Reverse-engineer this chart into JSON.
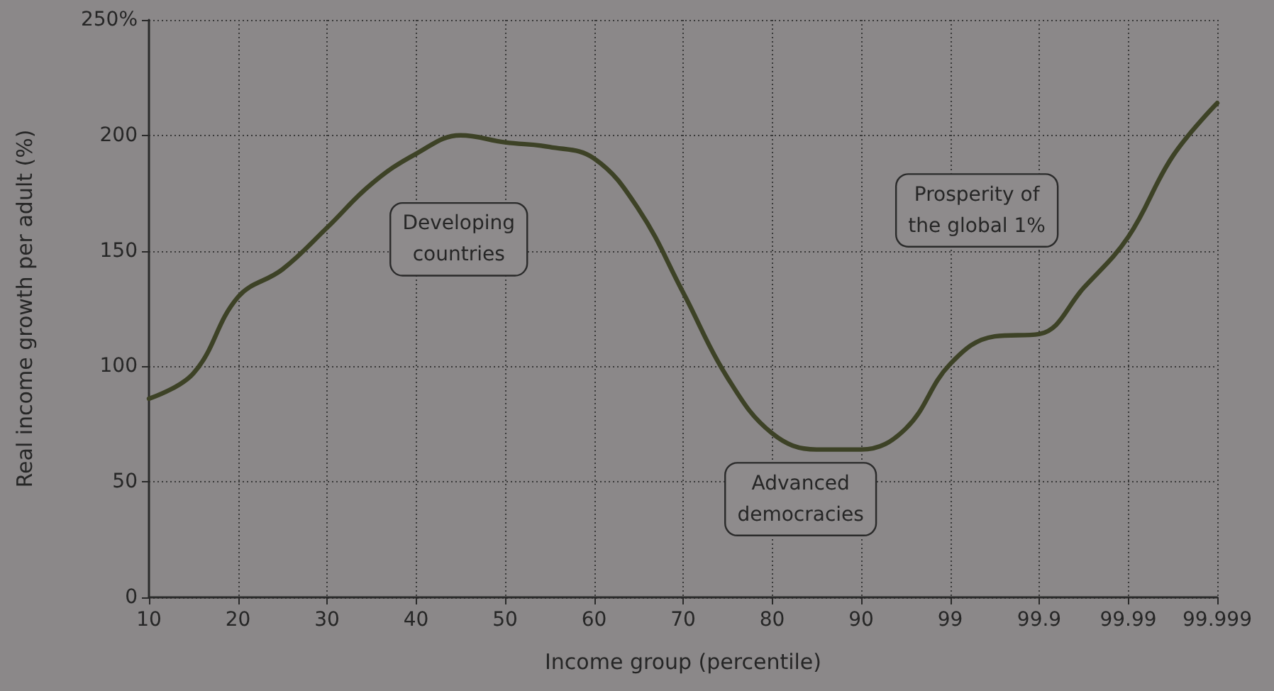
{
  "chart_data": {
    "type": "line",
    "xlabel": "Income group (percentile)",
    "ylabel": "Real income growth per adult (%)",
    "categories": [
      "10",
      null,
      "20",
      null,
      "30",
      null,
      "40",
      null,
      "50",
      null,
      "60",
      null,
      "70",
      null,
      "80",
      null,
      "90",
      null,
      "99",
      null,
      "99.9",
      null,
      "99.99",
      null,
      "99.999"
    ],
    "series": [
      {
        "color": "#3d4226",
        "values": [
          86,
          97,
          130,
          142,
          160,
          179,
          192,
          200,
          197,
          195,
          190,
          168,
          132,
          95,
          71,
          64,
          64,
          73,
          101,
          113,
          114,
          134,
          156,
          191,
          214
        ]
      }
    ],
    "ylim": [
      0,
      250
    ],
    "yticks": [
      0,
      50,
      100,
      150,
      200,
      {
        "value": 250,
        "label": "250%"
      }
    ],
    "grid": true,
    "marker": "none",
    "line_style": "solid",
    "annotations": [
      "Developing countries",
      "Advanced democracies",
      "Prosperity of the global 1%"
    ]
  }
}
